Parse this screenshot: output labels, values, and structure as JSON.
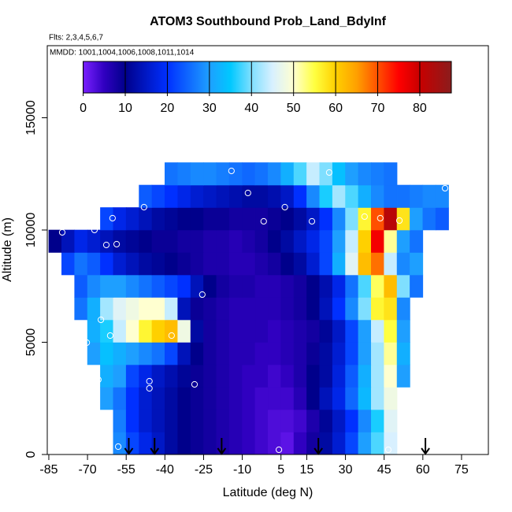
{
  "chart_data": {
    "type": "heatmap",
    "title": "ATOM3 Southbound Prob_Land_BdyInf",
    "subtitles": [
      "Flts: 2,3,4,5,6,7",
      "MMDD: 1001,1004,1006,1008,1011,1014"
    ],
    "x_label": "Latitude (deg N)",
    "y_label": "Altitude (m)",
    "xlim": [
      -85.6,
      85.4
    ],
    "ylim": [
      0,
      18210
    ],
    "xticks": [
      -85,
      -70,
      -55,
      -40,
      -25,
      -10,
      5,
      15,
      30,
      45,
      60,
      75
    ],
    "yticks": [
      0,
      5000,
      10000,
      15000
    ],
    "colorbar_lim": [
      0,
      87.5
    ],
    "colorbar_ticks": [
      0,
      10,
      20,
      30,
      40,
      50,
      60,
      70,
      80
    ],
    "colorscale": [
      [
        0,
        "#7a20ff"
      ],
      [
        5,
        "#3000c0"
      ],
      [
        10,
        "#00008b"
      ],
      [
        20,
        "#0030ff"
      ],
      [
        30,
        "#1e9fff"
      ],
      [
        35,
        "#00c8ff"
      ],
      [
        40,
        "#7fdfff"
      ],
      [
        45,
        "#d8f0ff"
      ],
      [
        50,
        "#ffffd0"
      ],
      [
        55,
        "#ffff40"
      ],
      [
        60,
        "#ffd000"
      ],
      [
        65,
        "#ffa000"
      ],
      [
        70,
        "#ff5000"
      ],
      [
        75,
        "#ff0000"
      ],
      [
        80,
        "#c80000"
      ],
      [
        87.5,
        "#8b1c1c"
      ]
    ],
    "x_bins": [
      -85,
      -80,
      -75,
      -70,
      -65,
      -60,
      -55,
      -50,
      -45,
      -40,
      -35,
      -30,
      -25,
      -20,
      -15,
      -10,
      -5,
      0,
      5,
      10,
      15,
      20,
      25,
      30,
      35,
      40,
      45,
      50,
      55,
      60,
      65,
      70
    ],
    "y_bins": [
      0,
      1000,
      2000,
      3000,
      4000,
      5000,
      6000,
      7000,
      8000,
      9000,
      10000,
      11000,
      12000,
      13000
    ],
    "z": [
      [
        null,
        null,
        null,
        null,
        null,
        28,
        22,
        18,
        15,
        12,
        10,
        9,
        8,
        7,
        6,
        5,
        4,
        3,
        2,
        5,
        8,
        12,
        16,
        22,
        30,
        38,
        45,
        null,
        null,
        null,
        null
      ],
      [
        null,
        null,
        null,
        null,
        null,
        27,
        20,
        16,
        14,
        12,
        10,
        9,
        8,
        7,
        6,
        5,
        4,
        3,
        3,
        4,
        7,
        11,
        15,
        20,
        28,
        36,
        46,
        null,
        null,
        null,
        null
      ],
      [
        null,
        null,
        null,
        null,
        30,
        26,
        20,
        16,
        14,
        12,
        10,
        9,
        8,
        7,
        6,
        5,
        4,
        4,
        4,
        6,
        10,
        14,
        18,
        25,
        33,
        42,
        48,
        null,
        null,
        null,
        null
      ],
      [
        null,
        null,
        null,
        null,
        32,
        30,
        22,
        18,
        15,
        13,
        11,
        9,
        8,
        7,
        6,
        5,
        5,
        4,
        5,
        7,
        10,
        12,
        17,
        24,
        32,
        42,
        50,
        30,
        null,
        null,
        null
      ],
      [
        null,
        null,
        null,
        30,
        34,
        32,
        30,
        28,
        26,
        22,
        14,
        10,
        8,
        7,
        6,
        6,
        5,
        5,
        6,
        7,
        9,
        12,
        16,
        22,
        30,
        42,
        52,
        32,
        null,
        null,
        null
      ],
      [
        null,
        null,
        null,
        32,
        36,
        44,
        50,
        56,
        60,
        62,
        48,
        12,
        8,
        7,
        6,
        6,
        6,
        5,
        6,
        7,
        8,
        11,
        15,
        22,
        30,
        44,
        55,
        30,
        null,
        null,
        null
      ],
      [
        null,
        null,
        26,
        32,
        42,
        46,
        48,
        50,
        50,
        44,
        14,
        9,
        8,
        7,
        6,
        6,
        6,
        6,
        7,
        8,
        10,
        14,
        20,
        28,
        40,
        56,
        58,
        28,
        null,
        null,
        null
      ],
      [
        null,
        null,
        24,
        28,
        30,
        30,
        28,
        26,
        24,
        22,
        20,
        14,
        10,
        8,
        7,
        7,
        6,
        6,
        7,
        8,
        10,
        13,
        18,
        26,
        38,
        54,
        62,
        40,
        26,
        null,
        null
      ],
      [
        null,
        22,
        26,
        24,
        20,
        16,
        14,
        12,
        11,
        10,
        9,
        8,
        7,
        7,
        6,
        6,
        7,
        8,
        10,
        12,
        16,
        22,
        32,
        46,
        62,
        68,
        44,
        28,
        30,
        null,
        null
      ],
      [
        10,
        14,
        18,
        16,
        14,
        12,
        11,
        10,
        9,
        9,
        8,
        8,
        7,
        7,
        6,
        7,
        8,
        10,
        12,
        15,
        18,
        22,
        30,
        44,
        60,
        76,
        52,
        30,
        26,
        null,
        null
      ],
      [
        null,
        null,
        null,
        null,
        22,
        18,
        16,
        14,
        12,
        11,
        10,
        10,
        9,
        9,
        8,
        8,
        8,
        9,
        10,
        12,
        15,
        20,
        28,
        40,
        56,
        70,
        82,
        58,
        30,
        26,
        24
      ],
      [
        null,
        null,
        null,
        null,
        null,
        null,
        null,
        24,
        22,
        20,
        18,
        16,
        15,
        14,
        13,
        12,
        12,
        13,
        15,
        20,
        28,
        36,
        42,
        38,
        32,
        28,
        26,
        26,
        27,
        28,
        28
      ],
      [
        null,
        null,
        null,
        null,
        null,
        null,
        null,
        null,
        null,
        26,
        27,
        28,
        28,
        27,
        26,
        25,
        26,
        28,
        32,
        38,
        44,
        40,
        34,
        30,
        28,
        27,
        26,
        null,
        null,
        null,
        null
      ]
    ],
    "points": {
      "x": [
        -79.8,
        -67.3,
        -62.7,
        -58.7,
        -60.3,
        -48.1,
        -14.2,
        -7.8,
        -1.7,
        6.5,
        17.0,
        23.7,
        37.4,
        43.5,
        50.9,
        68.6,
        -25.5,
        -64.8,
        -70.3,
        -61.2,
        -37.4,
        -65.8,
        -46.0,
        -46.0,
        -28.5,
        -58.1,
        4.2,
        46.6
      ],
      "y": [
        9895,
        10000,
        9334,
        9369,
        10527,
        11018,
        12632,
        11650,
        10387,
        11018,
        10387,
        12562,
        10597,
        10527,
        10422,
        11860,
        7123,
        6000,
        4983,
        5298,
        5298,
        3333,
        3263,
        2947,
        3123,
        351,
        211,
        211
      ],
      "color": "#ffffff"
    },
    "arrows": [
      -54,
      -44,
      -18,
      19.5,
      61
    ]
  }
}
